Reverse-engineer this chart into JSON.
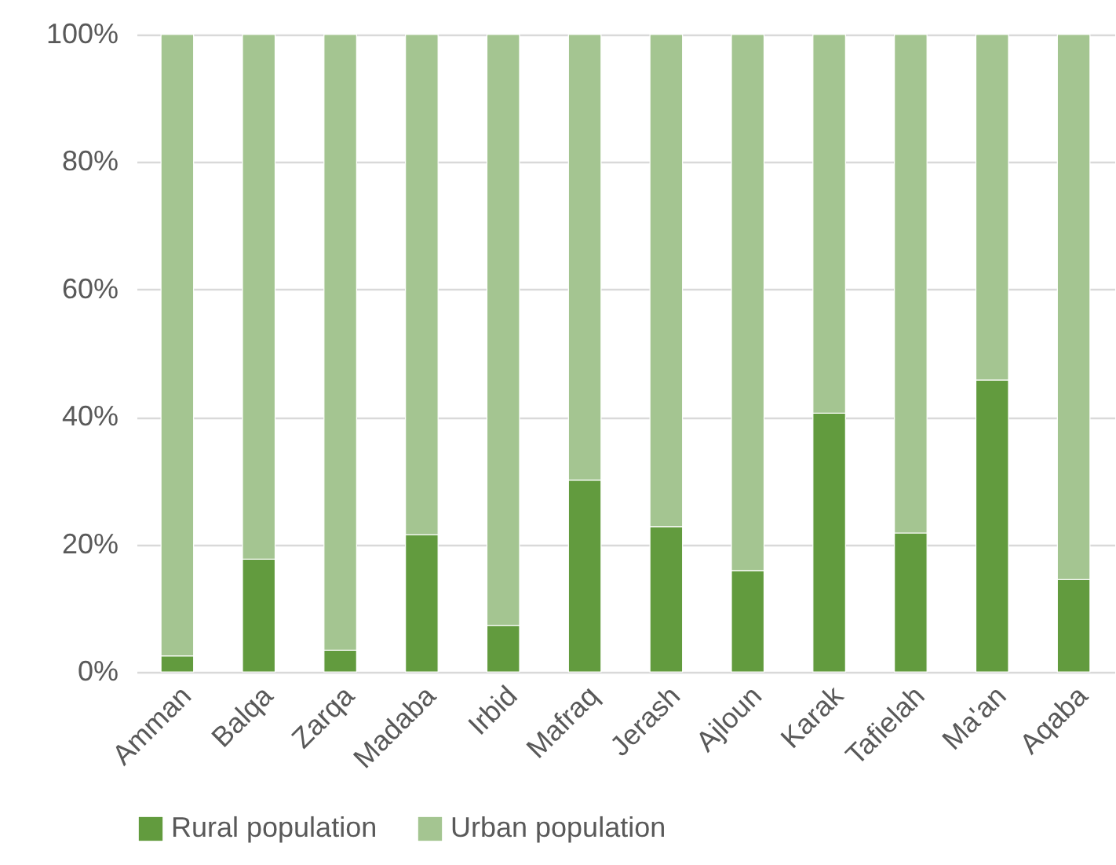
{
  "chart_data": {
    "type": "bar",
    "stacked": true,
    "categories": [
      "Amman",
      "Balqa",
      "Zarqa",
      "Madaba",
      "Irbid",
      "Mafraq",
      "Jerash",
      "Ajloun",
      "Karak",
      "Tafielah",
      "Ma'an",
      "Aqaba"
    ],
    "series": [
      {
        "name": "Rural population",
        "color": "#629b3e",
        "values": [
          2.5,
          17.7,
          3.4,
          21.5,
          7.3,
          30.1,
          22.8,
          15.9,
          40.6,
          21.8,
          45.8,
          14.5
        ]
      },
      {
        "name": "Urban population",
        "color": "#a4c591",
        "values": [
          97.5,
          82.3,
          96.6,
          78.5,
          92.7,
          69.9,
          77.2,
          84.1,
          59.4,
          78.2,
          54.2,
          85.5
        ]
      }
    ],
    "ylim": [
      0,
      100
    ],
    "yticks": [
      {
        "value": 0,
        "label": "0%"
      },
      {
        "value": 20,
        "label": "20%"
      },
      {
        "value": 40,
        "label": "40%"
      },
      {
        "value": 60,
        "label": "60%"
      },
      {
        "value": 80,
        "label": "80%"
      },
      {
        "value": 100,
        "label": "100%"
      }
    ],
    "grid": "y",
    "legend": "bottom"
  }
}
